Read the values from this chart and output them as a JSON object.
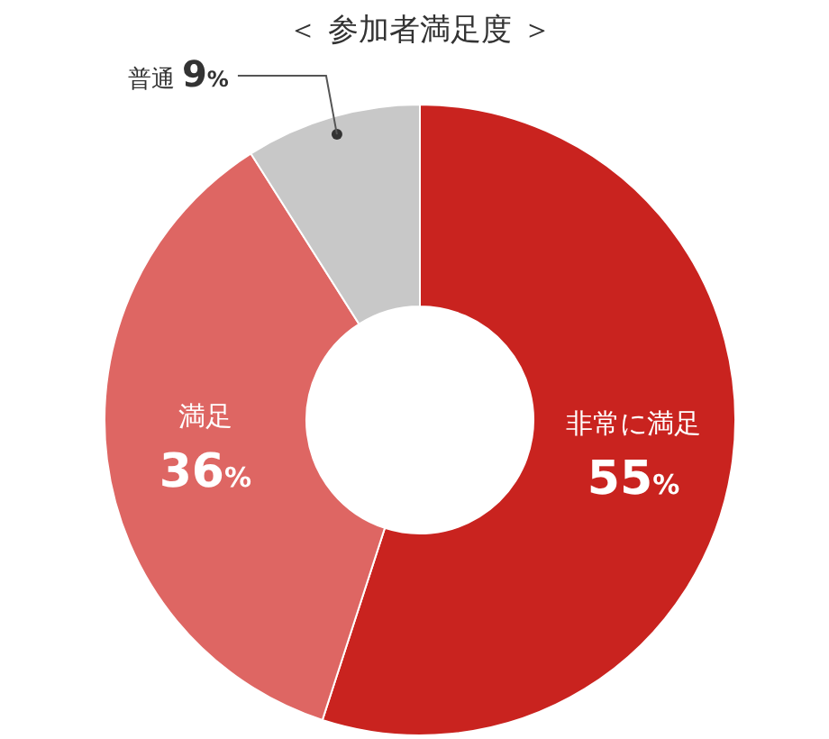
{
  "chart_data": {
    "type": "donut",
    "title": "＜ 参加者満足度 ＞",
    "categories": [
      "非常に満足",
      "満足",
      "普通"
    ],
    "values": [
      55,
      36,
      9
    ],
    "colors": [
      "#c9231f",
      "#de6663",
      "#c8c8c8"
    ],
    "value_labels": [
      "55%",
      "36%",
      "9%"
    ]
  }
}
